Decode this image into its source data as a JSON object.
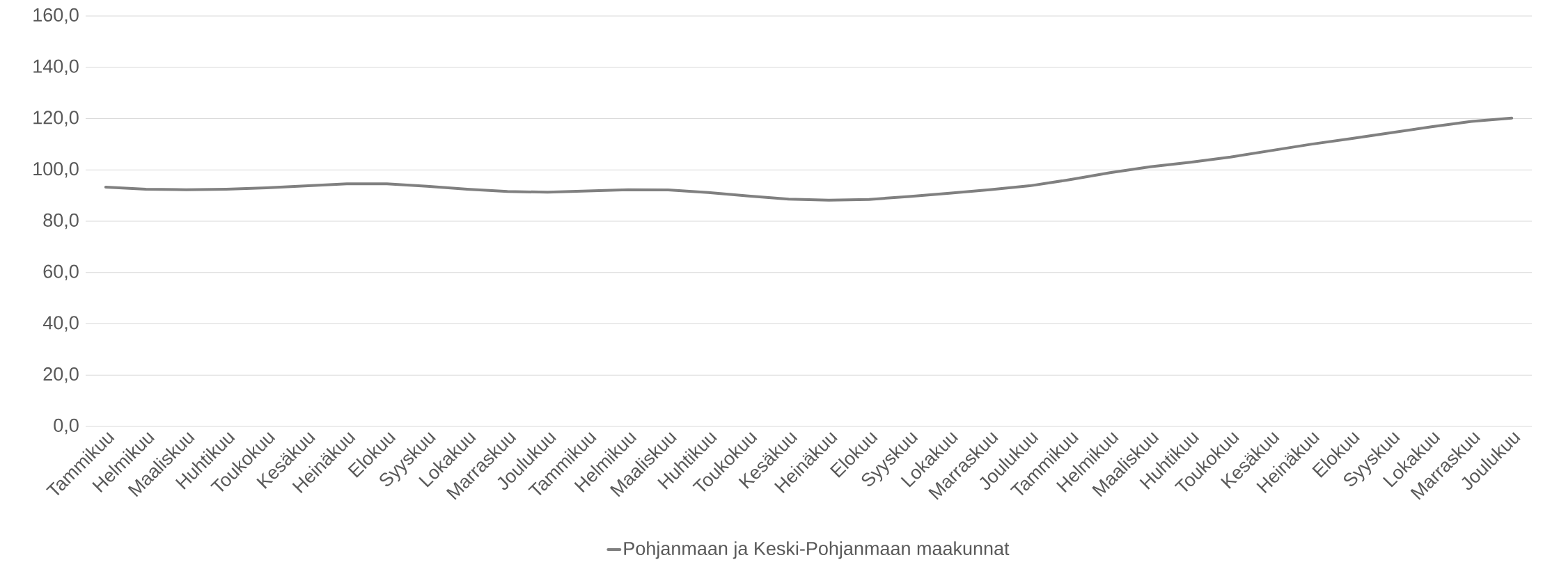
{
  "chart_data": {
    "type": "line",
    "categories": [
      "Tammikuu",
      "Helmikuu",
      "Maaliskuu",
      "Huhtikuu",
      "Toukokuu",
      "Kesäkuu",
      "Heinäkuu",
      "Elokuu",
      "Syyskuu",
      "Lokakuu",
      "Marraskuu",
      "Joulukuu",
      "Tammikuu",
      "Helmikuu",
      "Maaliskuu",
      "Huhtikuu",
      "Toukokuu",
      "Kesäkuu",
      "Heinäkuu",
      "Elokuu",
      "Syyskuu",
      "Lokakuu",
      "Marraskuu",
      "Joulukuu",
      "Tammikuu",
      "Helmikuu",
      "Maaliskuu",
      "Huhtikuu",
      "Toukokuu",
      "Kesäkuu",
      "Heinäkuu",
      "Elokuu",
      "Syyskuu",
      "Lokakuu",
      "Marraskuu",
      "Joulukuu"
    ],
    "series": [
      {
        "name": "Pohjanmaan ja Keski-Pohjanmaan maakunnat",
        "color": "#808080",
        "values": [
          93.3,
          92.5,
          92.3,
          92.5,
          93.0,
          93.8,
          94.6,
          94.6,
          93.6,
          92.5,
          91.6,
          91.3,
          91.8,
          92.3,
          92.2,
          91.2,
          89.8,
          88.6,
          88.2,
          88.5,
          89.6,
          90.9,
          92.3,
          93.8,
          96.2,
          98.9,
          101.2,
          103.0,
          105.0,
          107.5,
          110.0,
          112.2,
          114.5,
          116.8,
          118.9,
          120.2
        ]
      }
    ],
    "ylim": [
      0,
      160
    ],
    "yticks": [
      {
        "value": 0,
        "label": "0,0"
      },
      {
        "value": 20,
        "label": "20,0"
      },
      {
        "value": 40,
        "label": "40,0"
      },
      {
        "value": 60,
        "label": "60,0"
      },
      {
        "value": 80,
        "label": "80,0"
      },
      {
        "value": 100,
        "label": "100,0"
      },
      {
        "value": 120,
        "label": "120,0"
      },
      {
        "value": 140,
        "label": "140,0"
      },
      {
        "value": 160,
        "label": "160,0"
      }
    ],
    "grid": "y",
    "legend": "bottom",
    "marker": "none",
    "line_style": "solid"
  }
}
